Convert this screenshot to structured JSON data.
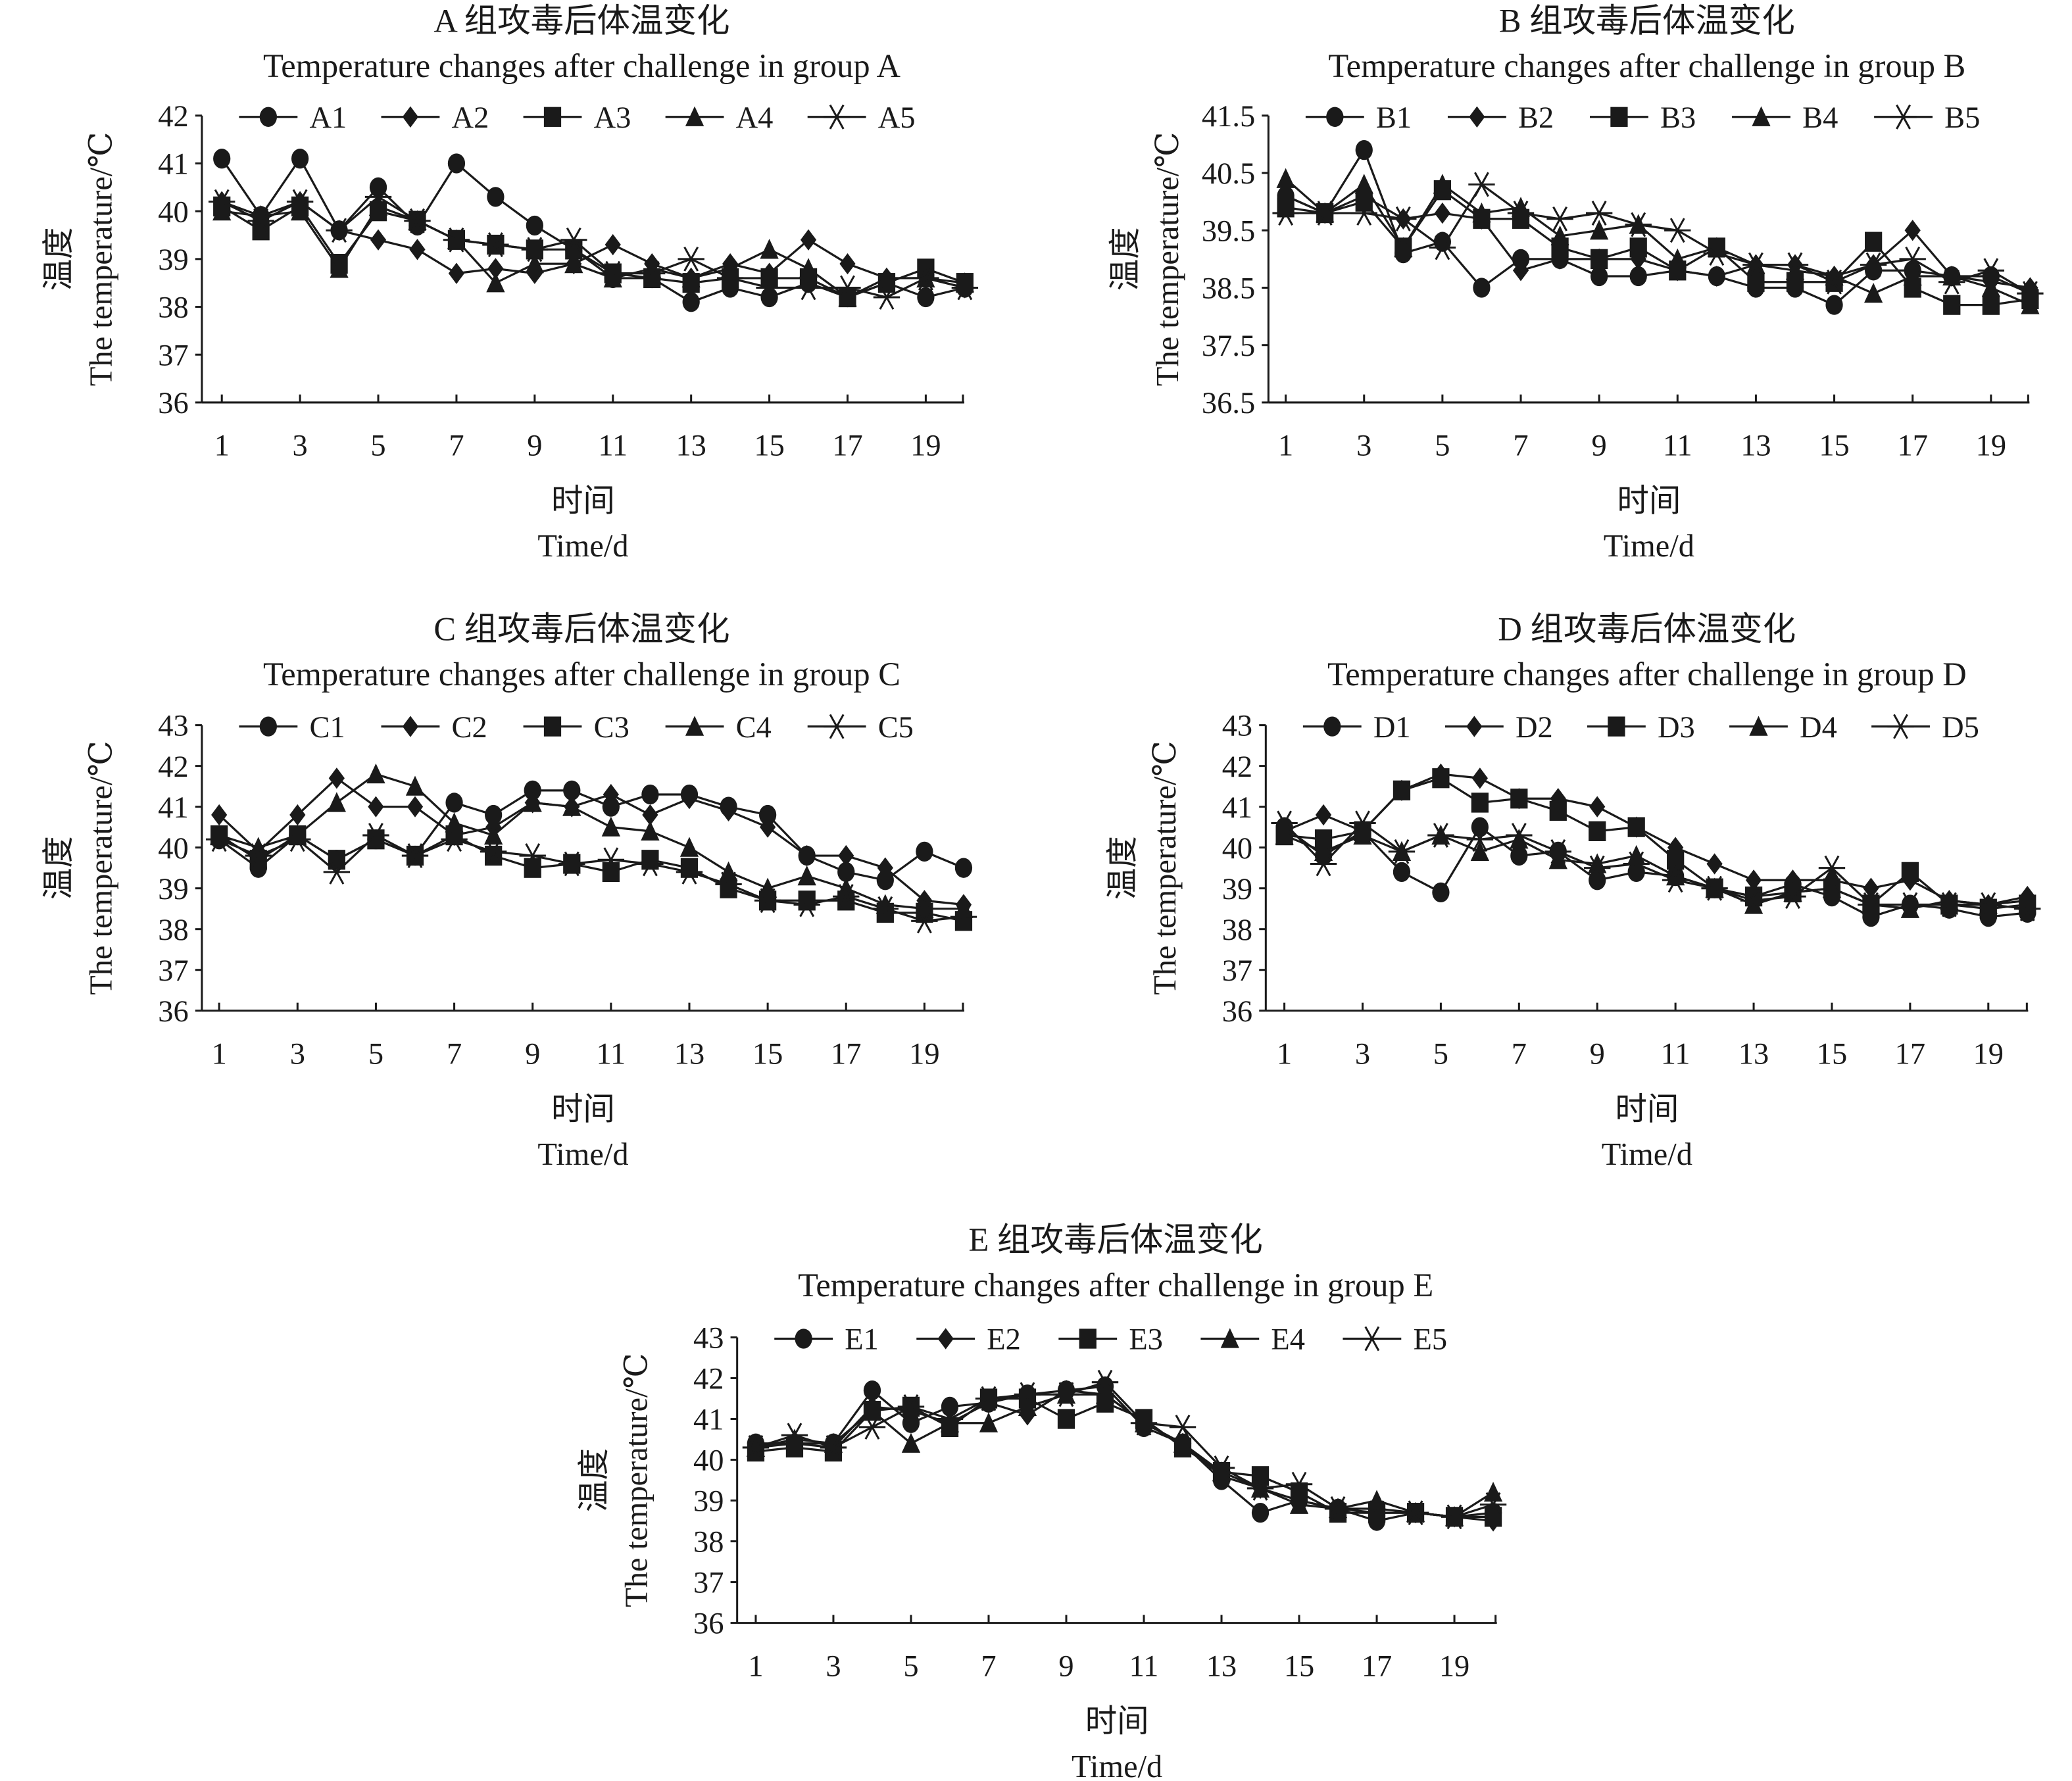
{
  "figure": {
    "line_color": "#1a1a1a",
    "background": "#ffffff"
  },
  "chart_data": [
    {
      "type": "line",
      "title": "A 组攻毒后体温变化",
      "subtitle": "Temperature changes after challenge in group A",
      "xlabel_cn": "时间",
      "xlabel": "Time/d",
      "ylabel_cn": "温度",
      "ylabel": "The temperature/℃",
      "ylim": [
        36,
        42
      ],
      "yticks": [
        "36",
        "37",
        "38",
        "39",
        "40",
        "41",
        "42"
      ],
      "xlim": [
        1,
        20
      ],
      "xticks": [
        "1",
        "3",
        "5",
        "7",
        "9",
        "11",
        "13",
        "15",
        "17",
        "19"
      ],
      "grid": false,
      "legend": "top",
      "x": [
        1,
        2,
        3,
        4,
        5,
        6,
        7,
        8,
        9,
        10,
        11,
        12,
        13,
        14,
        15,
        16,
        17,
        18,
        19,
        20
      ],
      "series": [
        {
          "name": "A1",
          "marker": "circle",
          "values": [
            41.1,
            39.9,
            41.1,
            39.6,
            40.5,
            39.7,
            41.0,
            40.3,
            39.7,
            39.2,
            38.6,
            38.6,
            38.1,
            38.4,
            38.2,
            38.5,
            38.2,
            38.5,
            38.2,
            38.4
          ]
        },
        {
          "name": "A2",
          "marker": "diamond",
          "values": [
            40.2,
            39.9,
            40.2,
            39.6,
            39.4,
            39.2,
            38.7,
            38.8,
            38.7,
            38.9,
            39.3,
            38.9,
            38.6,
            38.9,
            38.7,
            39.4,
            38.9,
            38.6,
            38.6,
            38.4
          ]
        },
        {
          "name": "A3",
          "marker": "square",
          "values": [
            40.1,
            39.6,
            40.1,
            38.9,
            40.0,
            39.8,
            39.4,
            39.3,
            39.2,
            39.2,
            38.7,
            38.6,
            38.5,
            38.6,
            38.6,
            38.6,
            38.2,
            38.5,
            38.8,
            38.5
          ]
        },
        {
          "name": "A4",
          "marker": "triangle",
          "values": [
            40.0,
            39.9,
            40.0,
            38.8,
            40.1,
            39.8,
            39.4,
            38.5,
            38.9,
            38.9,
            38.6,
            38.8,
            38.6,
            38.8,
            39.2,
            38.8,
            38.2,
            38.6,
            38.6,
            38.5
          ]
        },
        {
          "name": "A5",
          "marker": "cross",
          "values": [
            40.2,
            39.8,
            40.2,
            39.6,
            40.3,
            39.8,
            39.4,
            39.3,
            39.2,
            39.4,
            38.7,
            38.7,
            39.0,
            38.6,
            38.4,
            38.4,
            38.4,
            38.2,
            38.6,
            38.4
          ]
        }
      ]
    },
    {
      "type": "line",
      "title": "B 组攻毒后体温变化",
      "subtitle": "Temperature changes after challenge in group B",
      "xlabel_cn": "时间",
      "xlabel": "Time/d",
      "ylabel_cn": "温度",
      "ylabel": "The temperature/℃",
      "ylim": [
        36.5,
        41.5
      ],
      "yticks": [
        "36.5",
        "37.5",
        "38.5",
        "39.5",
        "40.5",
        "41.5"
      ],
      "xlim": [
        1,
        20
      ],
      "xticks": [
        "1",
        "3",
        "5",
        "7",
        "9",
        "11",
        "13",
        "15",
        "17",
        "19"
      ],
      "grid": false,
      "legend": "top",
      "x": [
        1,
        2,
        3,
        4,
        5,
        6,
        7,
        8,
        9,
        10,
        11,
        12,
        13,
        14,
        15,
        16,
        17,
        18,
        19,
        20
      ],
      "series": [
        {
          "name": "B1",
          "marker": "circle",
          "values": [
            40.1,
            39.8,
            40.9,
            39.1,
            39.3,
            38.5,
            39.0,
            39.0,
            38.7,
            38.7,
            38.8,
            38.7,
            38.5,
            38.5,
            38.2,
            38.8,
            38.8,
            38.7,
            38.7,
            38.4
          ]
        },
        {
          "name": "B2",
          "marker": "diamond",
          "values": [
            40.1,
            39.8,
            40.1,
            39.7,
            39.8,
            39.7,
            38.8,
            39.0,
            39.0,
            39.0,
            38.8,
            38.7,
            38.9,
            38.9,
            38.7,
            38.9,
            39.5,
            38.7,
            38.6,
            38.5
          ]
        },
        {
          "name": "B3",
          "marker": "square",
          "values": [
            39.9,
            39.8,
            40.0,
            39.2,
            40.2,
            39.7,
            39.7,
            39.2,
            39.0,
            39.2,
            38.8,
            39.2,
            38.6,
            38.6,
            38.6,
            39.3,
            38.5,
            38.2,
            38.2,
            38.3
          ]
        },
        {
          "name": "B4",
          "marker": "triangle",
          "values": [
            40.4,
            39.8,
            40.3,
            39.2,
            40.3,
            39.8,
            39.9,
            39.4,
            39.5,
            39.6,
            39.0,
            39.2,
            38.9,
            38.8,
            38.7,
            38.4,
            38.7,
            38.7,
            38.5,
            38.2
          ]
        },
        {
          "name": "B5",
          "marker": "cross",
          "values": [
            39.8,
            39.8,
            39.8,
            39.7,
            39.2,
            40.3,
            39.8,
            39.7,
            39.8,
            39.6,
            39.5,
            39.1,
            38.9,
            38.9,
            38.6,
            38.9,
            39.0,
            38.6,
            38.8,
            38.4
          ]
        }
      ]
    },
    {
      "type": "line",
      "title": "C 组攻毒后体温变化",
      "subtitle": "Temperature changes after challenge in group C",
      "xlabel_cn": "时间",
      "xlabel": "Time/d",
      "ylabel_cn": "温度",
      "ylabel": "The temperature/℃",
      "ylim": [
        36,
        43
      ],
      "yticks": [
        "36",
        "37",
        "38",
        "39",
        "40",
        "41",
        "42",
        "43"
      ],
      "xlim": [
        1,
        20
      ],
      "xticks": [
        "1",
        "3",
        "5",
        "7",
        "9",
        "11",
        "13",
        "15",
        "17",
        "19"
      ],
      "grid": false,
      "legend": "top",
      "x": [
        1,
        2,
        3,
        4,
        5,
        6,
        7,
        8,
        9,
        10,
        11,
        12,
        13,
        14,
        15,
        16,
        17,
        18,
        19,
        20
      ],
      "series": [
        {
          "name": "C1",
          "marker": "circle",
          "values": [
            40.2,
            39.5,
            40.3,
            39.7,
            40.2,
            39.8,
            41.1,
            40.8,
            41.4,
            41.4,
            41.0,
            41.3,
            41.3,
            41.0,
            40.8,
            39.8,
            39.4,
            39.2,
            39.9,
            39.5
          ]
        },
        {
          "name": "C2",
          "marker": "diamond",
          "values": [
            40.8,
            39.9,
            40.8,
            41.7,
            41.0,
            41.0,
            40.3,
            40.5,
            41.1,
            41.0,
            41.3,
            40.8,
            41.2,
            40.9,
            40.5,
            39.8,
            39.8,
            39.5,
            38.7,
            38.6
          ]
        },
        {
          "name": "C3",
          "marker": "square",
          "values": [
            40.3,
            39.7,
            40.3,
            39.7,
            40.2,
            39.8,
            40.3,
            39.8,
            39.5,
            39.6,
            39.4,
            39.7,
            39.5,
            39.0,
            38.7,
            38.7,
            38.7,
            38.4,
            38.4,
            38.2
          ]
        },
        {
          "name": "C4",
          "marker": "triangle",
          "values": [
            40.3,
            40.0,
            40.3,
            41.1,
            41.8,
            41.5,
            40.6,
            40.3,
            41.1,
            41.0,
            40.5,
            40.4,
            40.0,
            39.4,
            39.0,
            39.3,
            39.0,
            38.6,
            38.5,
            38.5
          ]
        },
        {
          "name": "C5",
          "marker": "cross",
          "values": [
            40.2,
            39.8,
            40.2,
            39.4,
            40.3,
            39.8,
            40.2,
            39.9,
            39.8,
            39.6,
            39.7,
            39.6,
            39.4,
            39.1,
            38.7,
            38.6,
            38.8,
            38.5,
            38.2,
            38.3
          ]
        }
      ]
    },
    {
      "type": "line",
      "title": "D 组攻毒后体温变化",
      "subtitle": "Temperature changes after challenge in group D",
      "xlabel_cn": "时间",
      "xlabel": "Time/d",
      "ylabel_cn": "温度",
      "ylabel": "The temperature/℃",
      "ylim": [
        36,
        43
      ],
      "yticks": [
        "36",
        "37",
        "38",
        "39",
        "40",
        "41",
        "42",
        "43"
      ],
      "xlim": [
        1,
        20
      ],
      "xticks": [
        "1",
        "3",
        "5",
        "7",
        "9",
        "11",
        "13",
        "15",
        "17",
        "19"
      ],
      "grid": false,
      "legend": "top",
      "x": [
        1,
        2,
        3,
        4,
        5,
        6,
        7,
        8,
        9,
        10,
        11,
        12,
        13,
        14,
        15,
        16,
        17,
        18,
        19,
        20
      ],
      "series": [
        {
          "name": "D1",
          "marker": "circle",
          "values": [
            40.5,
            39.8,
            40.4,
            39.4,
            38.9,
            40.5,
            39.8,
            39.9,
            39.2,
            39.4,
            39.3,
            39.0,
            38.8,
            39.1,
            38.8,
            38.3,
            38.6,
            38.5,
            38.3,
            38.4
          ]
        },
        {
          "name": "D2",
          "marker": "diamond",
          "values": [
            40.4,
            40.8,
            40.4,
            41.4,
            41.8,
            41.7,
            41.2,
            41.2,
            41.0,
            40.5,
            40.0,
            39.6,
            39.2,
            39.2,
            39.2,
            39.0,
            39.2,
            38.7,
            38.6,
            38.8
          ]
        },
        {
          "name": "D3",
          "marker": "square",
          "values": [
            40.3,
            40.2,
            40.4,
            41.4,
            41.7,
            41.1,
            41.2,
            40.9,
            40.4,
            40.5,
            39.7,
            39.0,
            38.8,
            38.9,
            39.0,
            38.6,
            39.4,
            38.6,
            38.5,
            38.6
          ]
        },
        {
          "name": "D4",
          "marker": "triangle",
          "values": [
            40.3,
            39.9,
            40.3,
            39.9,
            40.3,
            39.9,
            40.2,
            39.7,
            39.6,
            39.8,
            39.3,
            39.0,
            38.6,
            38.9,
            39.0,
            38.6,
            38.5,
            38.7,
            38.6,
            38.7
          ]
        },
        {
          "name": "D5",
          "marker": "cross",
          "values": [
            40.6,
            39.6,
            40.6,
            39.9,
            40.3,
            40.2,
            40.3,
            39.9,
            39.5,
            39.6,
            39.2,
            39.0,
            38.7,
            38.8,
            39.5,
            38.6,
            38.6,
            38.6,
            38.6,
            38.5
          ]
        }
      ]
    },
    {
      "type": "line",
      "title": "E 组攻毒后体温变化",
      "subtitle": "Temperature changes after challenge in group E",
      "xlabel_cn": "时间",
      "xlabel": "Time/d",
      "ylabel_cn": "温度",
      "ylabel": "The temperature/℃",
      "ylim": [
        36,
        43
      ],
      "yticks": [
        "36",
        "37",
        "38",
        "39",
        "40",
        "41",
        "42",
        "43"
      ],
      "xlim": [
        1,
        20
      ],
      "xticks": [
        "1",
        "3",
        "5",
        "7",
        "9",
        "11",
        "13",
        "15",
        "17",
        "19"
      ],
      "grid": false,
      "legend": "top",
      "x": [
        1,
        2,
        3,
        4,
        5,
        6,
        7,
        8,
        9,
        10,
        11,
        12,
        13,
        14,
        15,
        16,
        17,
        18,
        19,
        20
      ],
      "series": [
        {
          "name": "E1",
          "marker": "circle",
          "values": [
            40.4,
            40.4,
            40.4,
            41.7,
            40.9,
            41.3,
            41.4,
            41.6,
            41.7,
            41.8,
            40.8,
            40.4,
            39.5,
            38.7,
            39.0,
            38.8,
            38.5,
            38.7,
            38.6,
            38.7
          ]
        },
        {
          "name": "E2",
          "marker": "diamond",
          "values": [
            40.3,
            40.4,
            40.3,
            41.3,
            41.2,
            40.9,
            41.4,
            41.1,
            41.7,
            41.6,
            40.9,
            40.4,
            39.6,
            39.3,
            39.0,
            38.8,
            38.8,
            38.7,
            38.6,
            38.5
          ]
        },
        {
          "name": "E3",
          "marker": "square",
          "values": [
            40.2,
            40.3,
            40.2,
            41.2,
            41.3,
            40.8,
            41.5,
            41.5,
            41.0,
            41.4,
            41.0,
            40.3,
            39.7,
            39.6,
            39.2,
            38.7,
            38.7,
            38.7,
            38.6,
            38.6
          ]
        },
        {
          "name": "E4",
          "marker": "triangle",
          "values": [
            40.3,
            40.5,
            40.4,
            41.2,
            40.4,
            40.9,
            40.9,
            41.3,
            41.6,
            41.6,
            40.9,
            40.4,
            39.7,
            39.3,
            38.9,
            38.8,
            39.0,
            38.7,
            38.6,
            39.2
          ]
        },
        {
          "name": "E5",
          "marker": "cross",
          "values": [
            40.3,
            40.6,
            40.3,
            40.8,
            41.3,
            41.0,
            41.5,
            41.6,
            41.6,
            41.9,
            40.9,
            40.8,
            39.8,
            39.3,
            39.4,
            38.8,
            38.7,
            38.7,
            38.6,
            38.9
          ]
        }
      ]
    }
  ]
}
